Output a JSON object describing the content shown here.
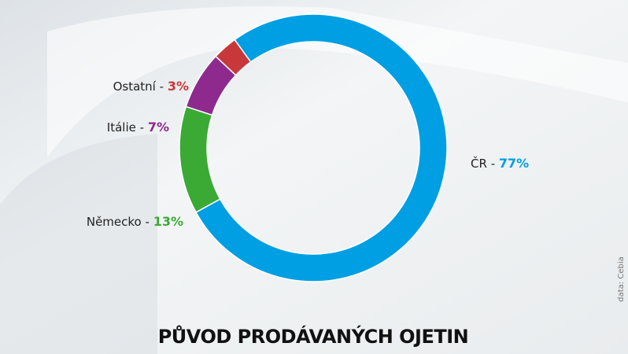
{
  "chart_data": {
    "type": "donut",
    "title": "PŮVOD PRODÁVANÝCH OJETIN",
    "categories": [
      "ČR",
      "Německo",
      "Itálie",
      "Ostatní"
    ],
    "values": [
      77,
      13,
      7,
      3
    ],
    "value_labels": [
      "77%",
      "13%",
      "7%",
      "3%"
    ],
    "colors": [
      "#009fe3",
      "#3aaa35",
      "#8e2a8e",
      "#c8383a"
    ],
    "separator": "-",
    "source": "data: Cebia"
  }
}
